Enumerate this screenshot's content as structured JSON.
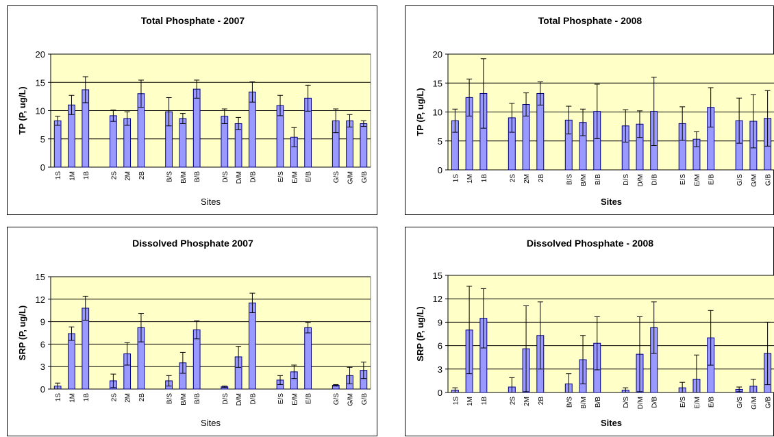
{
  "colors": {
    "plot_bg": "#ffffc8",
    "bar_fill": "#9999ff",
    "bar_stroke": "#000080",
    "grid": "#000000"
  },
  "chart_data": [
    {
      "type": "bar",
      "title": "Total Phosphate - 2007",
      "xlabel": "Sites",
      "ylabel": "TP (P, ug/L)",
      "ylim": [
        0,
        20
      ],
      "yticks": [
        0,
        5,
        10,
        15,
        20
      ],
      "grid": true,
      "categories": [
        "1S",
        "1M",
        "1B",
        "2S",
        "2M",
        "2B",
        "B/S",
        "B/M",
        "B/B",
        "D/S",
        "D/M",
        "D/B",
        "E/S",
        "E/M",
        "E/B",
        "G/S",
        "G/M",
        "G/B"
      ],
      "values": [
        8.2,
        11.0,
        13.7,
        9.1,
        8.6,
        13.0,
        9.8,
        8.6,
        13.8,
        9.0,
        7.7,
        13.3,
        10.9,
        5.3,
        12.2,
        8.2,
        8.2,
        7.7
      ],
      "errors": [
        0.8,
        1.7,
        2.3,
        1.0,
        1.2,
        2.4,
        2.5,
        0.9,
        1.6,
        1.3,
        1.1,
        1.8,
        1.8,
        1.7,
        2.3,
        2.1,
        1.1,
        0.5
      ]
    },
    {
      "type": "bar",
      "title": "Total Phosphate - 2008",
      "xlabel": "Sites",
      "ylabel": "TP (P, ug/L)",
      "ylim": [
        0,
        20
      ],
      "yticks": [
        0,
        5,
        10,
        15,
        20
      ],
      "grid": true,
      "categories": [
        "1S",
        "1M",
        "1B",
        "2S",
        "2M",
        "2B",
        "B/S",
        "B/M",
        "B/B",
        "D/S",
        "D/M",
        "D/B",
        "E/S",
        "E/M",
        "E/B",
        "G/S",
        "G/M",
        "G/B"
      ],
      "values": [
        8.5,
        12.5,
        13.2,
        9.0,
        11.3,
        13.2,
        8.6,
        8.2,
        10.1,
        7.6,
        7.9,
        10.1,
        8.0,
        5.3,
        10.8,
        8.5,
        8.4,
        8.9
      ],
      "errors": [
        2.0,
        3.2,
        6.0,
        2.5,
        2.0,
        2.0,
        2.4,
        2.3,
        4.7,
        2.8,
        2.3,
        5.9,
        2.9,
        1.3,
        3.4,
        3.9,
        4.6,
        4.8
      ]
    },
    {
      "type": "bar",
      "title": "Dissolved Phosphate 2007",
      "xlabel": "Sites",
      "ylabel": "SRP (P, ug/L)",
      "ylim": [
        0,
        15
      ],
      "yticks": [
        0,
        3,
        6,
        9,
        12,
        15
      ],
      "grid": true,
      "categories": [
        "1S",
        "1M",
        "1B",
        "2S",
        "2M",
        "2B",
        "B/S",
        "B/M",
        "B/B",
        "D/S",
        "D/M",
        "D/B",
        "E/S",
        "E/M",
        "E/B",
        "G/S",
        "G/M",
        "G/B"
      ],
      "values": [
        0.4,
        7.4,
        10.8,
        1.1,
        4.7,
        8.2,
        1.1,
        3.5,
        7.9,
        0.3,
        4.3,
        11.5,
        1.2,
        2.3,
        8.2,
        0.5,
        1.8,
        2.5
      ],
      "errors": [
        0.4,
        0.9,
        1.6,
        0.9,
        1.5,
        1.9,
        0.7,
        1.4,
        1.2,
        0.1,
        1.4,
        1.3,
        0.6,
        0.9,
        0.7,
        0.1,
        1.1,
        1.1
      ]
    },
    {
      "type": "bar",
      "title": "Dissolved Phosphate - 2008",
      "xlabel": "Sites",
      "ylabel": "SRP (P, ug/L)",
      "ylim": [
        0,
        15
      ],
      "yticks": [
        0,
        3,
        6,
        9,
        12,
        15
      ],
      "grid": true,
      "categories": [
        "1S",
        "1M",
        "1B",
        "2S",
        "2M",
        "2B",
        "B/S",
        "B/M",
        "B/B",
        "D/S",
        "D/M",
        "D/B",
        "E/S",
        "E/M",
        "E/B",
        "G/S",
        "G/M",
        "G/B"
      ],
      "values": [
        0.3,
        8.0,
        9.5,
        0.7,
        5.6,
        7.3,
        1.1,
        4.2,
        6.3,
        0.3,
        4.9,
        8.3,
        0.6,
        1.7,
        7.0,
        0.4,
        0.8,
        5.0
      ],
      "errors": [
        0.3,
        5.6,
        3.8,
        1.2,
        5.5,
        4.3,
        1.3,
        3.1,
        3.4,
        0.3,
        4.8,
        3.3,
        0.7,
        3.1,
        3.5,
        0.3,
        0.9,
        4.0
      ]
    }
  ]
}
